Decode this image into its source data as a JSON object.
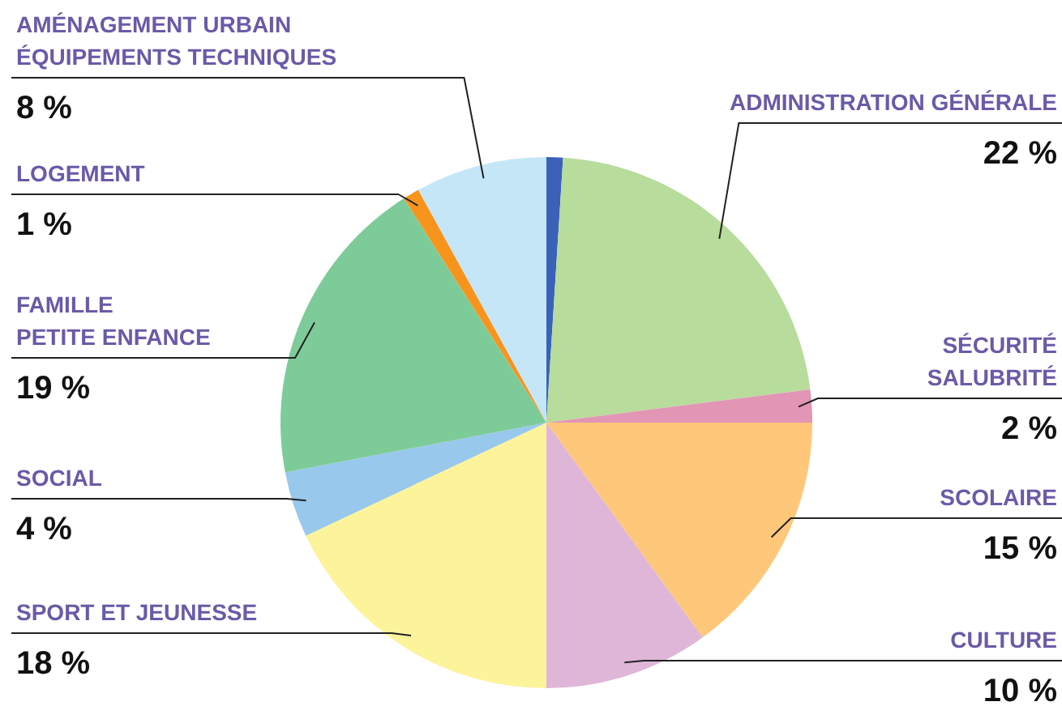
{
  "chart_data": {
    "type": "pie",
    "categories": [
      null,
      "ADMINISTRATION GÉNÉRALE",
      "SÉCURITÉ\nSALUBRITÉ",
      "SCOLAIRE",
      "CULTURE",
      "SPORT ET JEUNESSE",
      "SOCIAL",
      "FAMILLE\nPETITE ENFANCE",
      "LOGEMENT",
      "AMÉNAGEMENT URBAIN\nÉQUIPEMENTS TECHNIQUES"
    ],
    "values": [
      1,
      22,
      2,
      15,
      10,
      18,
      4,
      19,
      1,
      8
    ],
    "value_labels": [
      null,
      "22 %",
      "2 %",
      "15 %",
      "10 %",
      "18 %",
      "4 %",
      "19 %",
      "1 %",
      "8 %"
    ],
    "colors": [
      "#3a62b8",
      "#b7dc9b",
      "#e295b4",
      "#fec77a",
      "#dfb6d8",
      "#fdf39b",
      "#98c8ec",
      "#7ecb9a",
      "#f7941d",
      "#c5e6f7"
    ]
  }
}
